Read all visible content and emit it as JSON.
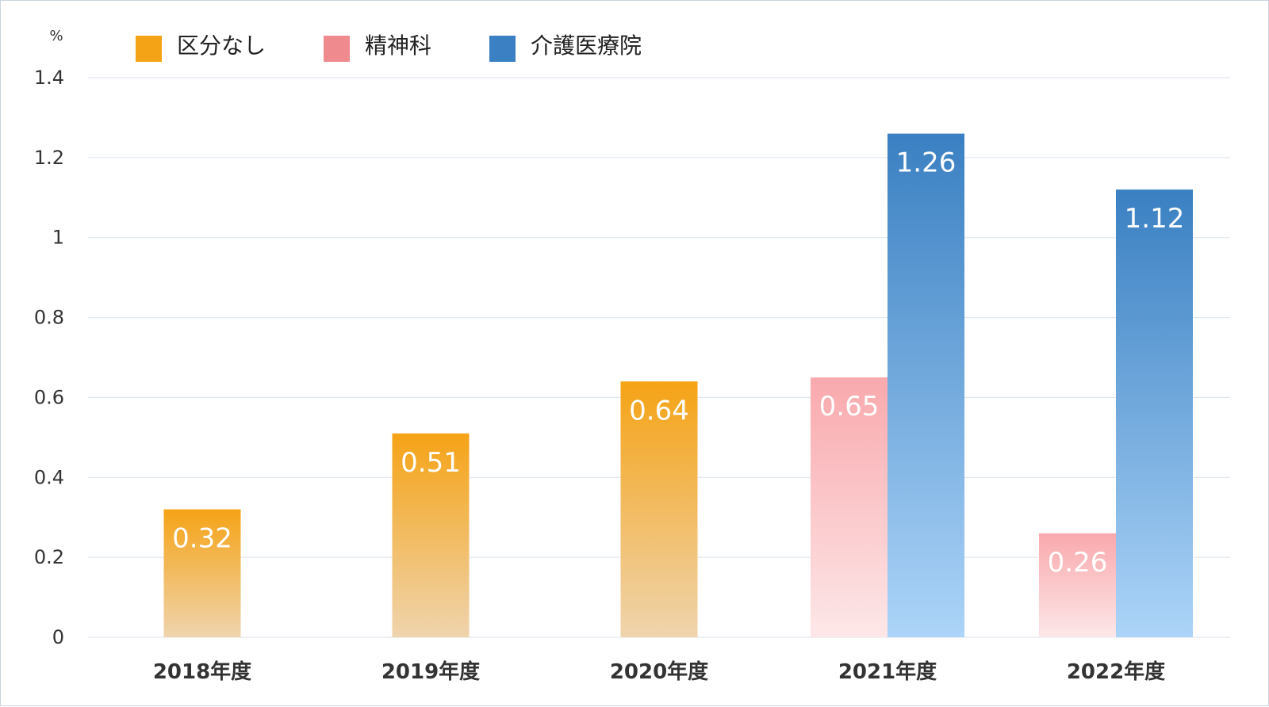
{
  "chart_data": {
    "type": "bar",
    "unit_label": "%",
    "categories": [
      "2018年度",
      "2019年度",
      "2020年度",
      "2021年度",
      "2022年度"
    ],
    "series": [
      {
        "name": "区分なし",
        "color": "#f5a316",
        "values": [
          0.32,
          0.51,
          0.64,
          null,
          null
        ]
      },
      {
        "name": "精神科",
        "color": "#ef8a8e",
        "values": [
          null,
          null,
          null,
          0.65,
          0.26
        ]
      },
      {
        "name": "介護医療院",
        "color": "#3a80c2",
        "values": [
          null,
          null,
          null,
          1.26,
          1.12
        ]
      }
    ],
    "data_labels": [
      [
        "0.32",
        "0.51",
        "0.64",
        "",
        ""
      ],
      [
        "",
        "",
        "",
        "0.65",
        "0.26"
      ],
      [
        "",
        "",
        "",
        "1.26",
        "1.12"
      ]
    ],
    "y_ticks": [
      "0",
      "0.2",
      "0.4",
      "0.6",
      "0.8",
      "1",
      "1.2",
      "1.4"
    ],
    "ylim": [
      0,
      1.4
    ],
    "grid": true,
    "legend_position": "top-left"
  }
}
